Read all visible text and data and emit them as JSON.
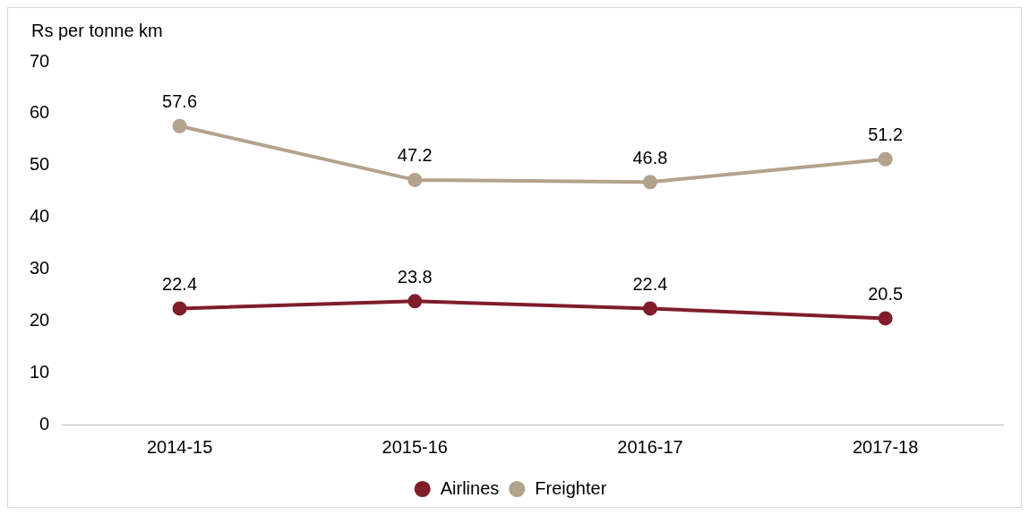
{
  "chart_data": {
    "type": "line",
    "ylabel": "Rs per tonne km",
    "categories": [
      "2014-15",
      "2015-16",
      "2016-17",
      "2017-18"
    ],
    "series": [
      {
        "name": "Airlines",
        "color": "#7f1d2b",
        "values": [
          22.4,
          23.8,
          22.4,
          20.5
        ]
      },
      {
        "name": "Freighter",
        "color": "#b3a28c",
        "values": [
          57.6,
          47.2,
          46.8,
          51.2
        ]
      }
    ],
    "ylim": [
      0,
      70
    ],
    "yticks": [
      0,
      10,
      20,
      30,
      40,
      50,
      60,
      70
    ],
    "grid": false,
    "legend": "bottom",
    "marker": "circle",
    "line_style": "solid",
    "data_labels": true
  }
}
